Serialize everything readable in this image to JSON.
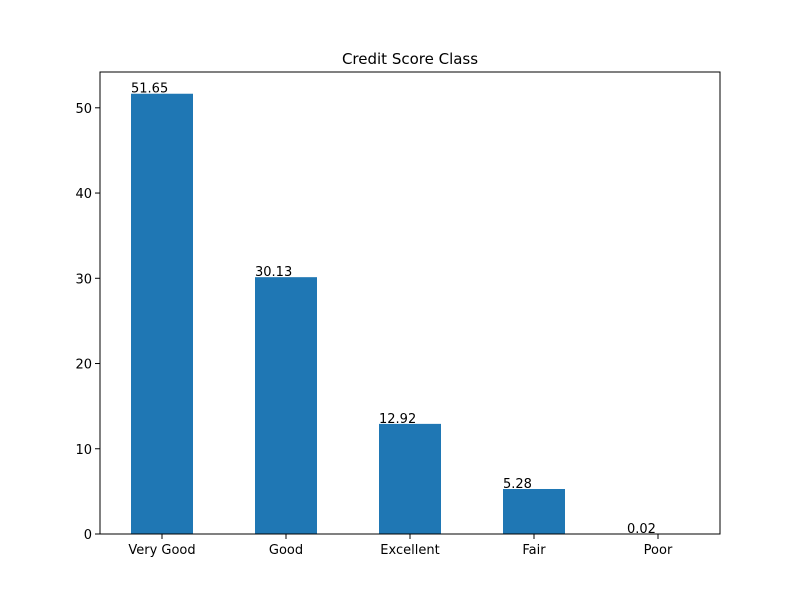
{
  "chart_data": {
    "type": "bar",
    "title": "Credit Score Class",
    "xlabel": "",
    "ylabel": "",
    "categories": [
      "Very Good",
      "Good",
      "Excellent",
      "Fair",
      "Poor"
    ],
    "values": [
      51.65,
      30.13,
      12.92,
      5.28,
      0.02
    ],
    "data_labels": [
      "51.65",
      "30.13",
      "12.92",
      "5.28",
      "0.02"
    ],
    "ylim": [
      0,
      54.2
    ],
    "yticks": [
      0,
      10,
      20,
      30,
      40,
      50
    ],
    "ytick_labels": [
      "0",
      "10",
      "20",
      "30",
      "40",
      "50"
    ],
    "grid": false,
    "legend": "none",
    "bar_color": "#1f77b4"
  }
}
